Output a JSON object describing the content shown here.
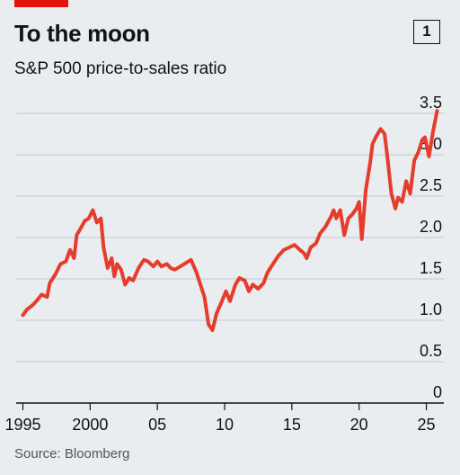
{
  "header": {
    "title": "To the moon",
    "badge": "1"
  },
  "footer": {
    "source": "Source: Bloomberg"
  },
  "colors": {
    "line": "#e63c2c",
    "grid": "#c2c7cc",
    "accent": "#e3120b",
    "background": "#e9edf0"
  },
  "chart_data": {
    "type": "line",
    "title": "To the moon",
    "subtitle": "S&P 500 price-to-sales ratio",
    "xlabel": "",
    "ylabel": "",
    "xlim": [
      1994.5,
      2026.3
    ],
    "ylim": [
      0,
      3.5
    ],
    "grid": true,
    "y_ticks": [
      {
        "value": 0,
        "label": "0"
      },
      {
        "value": 0.5,
        "label": "0.5"
      },
      {
        "value": 1.0,
        "label": "1.0"
      },
      {
        "value": 1.5,
        "label": "1.5"
      },
      {
        "value": 2.0,
        "label": "2.0"
      },
      {
        "value": 2.5,
        "label": "2.5"
      },
      {
        "value": 3.0,
        "label": "3.0"
      },
      {
        "value": 3.5,
        "label": "3.5"
      }
    ],
    "x_ticks": [
      {
        "value": 1995,
        "label": "1995"
      },
      {
        "value": 2000,
        "label": "2000"
      },
      {
        "value": 2005,
        "label": "05"
      },
      {
        "value": 2010,
        "label": "10"
      },
      {
        "value": 2015,
        "label": "15"
      },
      {
        "value": 2020,
        "label": "20"
      },
      {
        "value": 2025,
        "label": "25"
      }
    ],
    "series": [
      {
        "values": [
          [
            1995.0,
            0.93
          ],
          [
            1995.3,
            1.0
          ],
          [
            1995.7,
            1.05
          ],
          [
            1996.0,
            1.1
          ],
          [
            1996.4,
            1.18
          ],
          [
            1996.8,
            1.15
          ],
          [
            1997.0,
            1.32
          ],
          [
            1997.4,
            1.42
          ],
          [
            1997.8,
            1.55
          ],
          [
            1998.2,
            1.58
          ],
          [
            1998.5,
            1.72
          ],
          [
            1998.8,
            1.62
          ],
          [
            1999.0,
            1.9
          ],
          [
            1999.3,
            1.98
          ],
          [
            1999.6,
            2.07
          ],
          [
            1999.9,
            2.1
          ],
          [
            2000.2,
            2.2
          ],
          [
            2000.5,
            2.05
          ],
          [
            2000.8,
            2.1
          ],
          [
            2001.0,
            1.75
          ],
          [
            2001.3,
            1.5
          ],
          [
            2001.6,
            1.62
          ],
          [
            2001.8,
            1.4
          ],
          [
            2002.0,
            1.55
          ],
          [
            2002.3,
            1.48
          ],
          [
            2002.6,
            1.3
          ],
          [
            2002.9,
            1.38
          ],
          [
            2003.2,
            1.35
          ],
          [
            2003.6,
            1.5
          ],
          [
            2004.0,
            1.6
          ],
          [
            2004.3,
            1.58
          ],
          [
            2004.7,
            1.52
          ],
          [
            2005.0,
            1.58
          ],
          [
            2005.3,
            1.52
          ],
          [
            2005.7,
            1.55
          ],
          [
            2006.0,
            1.5
          ],
          [
            2006.3,
            1.48
          ],
          [
            2006.7,
            1.52
          ],
          [
            2007.0,
            1.55
          ],
          [
            2007.5,
            1.6
          ],
          [
            2007.9,
            1.45
          ],
          [
            2008.2,
            1.3
          ],
          [
            2008.5,
            1.15
          ],
          [
            2008.8,
            0.82
          ],
          [
            2009.1,
            0.75
          ],
          [
            2009.4,
            0.95
          ],
          [
            2009.8,
            1.1
          ],
          [
            2010.1,
            1.22
          ],
          [
            2010.4,
            1.1
          ],
          [
            2010.8,
            1.3
          ],
          [
            2011.1,
            1.38
          ],
          [
            2011.5,
            1.35
          ],
          [
            2011.8,
            1.22
          ],
          [
            2012.1,
            1.3
          ],
          [
            2012.5,
            1.25
          ],
          [
            2012.9,
            1.32
          ],
          [
            2013.2,
            1.45
          ],
          [
            2013.6,
            1.55
          ],
          [
            2014.0,
            1.65
          ],
          [
            2014.4,
            1.72
          ],
          [
            2014.8,
            1.75
          ],
          [
            2015.2,
            1.78
          ],
          [
            2015.6,
            1.72
          ],
          [
            2015.9,
            1.68
          ],
          [
            2016.1,
            1.62
          ],
          [
            2016.4,
            1.75
          ],
          [
            2016.8,
            1.8
          ],
          [
            2017.1,
            1.92
          ],
          [
            2017.5,
            2.0
          ],
          [
            2017.9,
            2.12
          ],
          [
            2018.1,
            2.2
          ],
          [
            2018.3,
            2.1
          ],
          [
            2018.6,
            2.2
          ],
          [
            2018.9,
            1.9
          ],
          [
            2019.2,
            2.1
          ],
          [
            2019.5,
            2.15
          ],
          [
            2019.8,
            2.22
          ],
          [
            2020.0,
            2.3
          ],
          [
            2020.2,
            1.85
          ],
          [
            2020.5,
            2.45
          ],
          [
            2020.8,
            2.75
          ],
          [
            2021.0,
            3.0
          ],
          [
            2021.3,
            3.1
          ],
          [
            2021.6,
            3.18
          ],
          [
            2021.9,
            3.12
          ],
          [
            2022.1,
            2.85
          ],
          [
            2022.4,
            2.4
          ],
          [
            2022.7,
            2.22
          ],
          [
            2022.9,
            2.35
          ],
          [
            2023.2,
            2.3
          ],
          [
            2023.5,
            2.55
          ],
          [
            2023.8,
            2.4
          ],
          [
            2024.1,
            2.8
          ],
          [
            2024.4,
            2.9
          ],
          [
            2024.7,
            3.05
          ],
          [
            2024.9,
            3.08
          ],
          [
            2025.2,
            2.85
          ],
          [
            2025.5,
            3.15
          ],
          [
            2025.8,
            3.4
          ]
        ]
      }
    ]
  }
}
